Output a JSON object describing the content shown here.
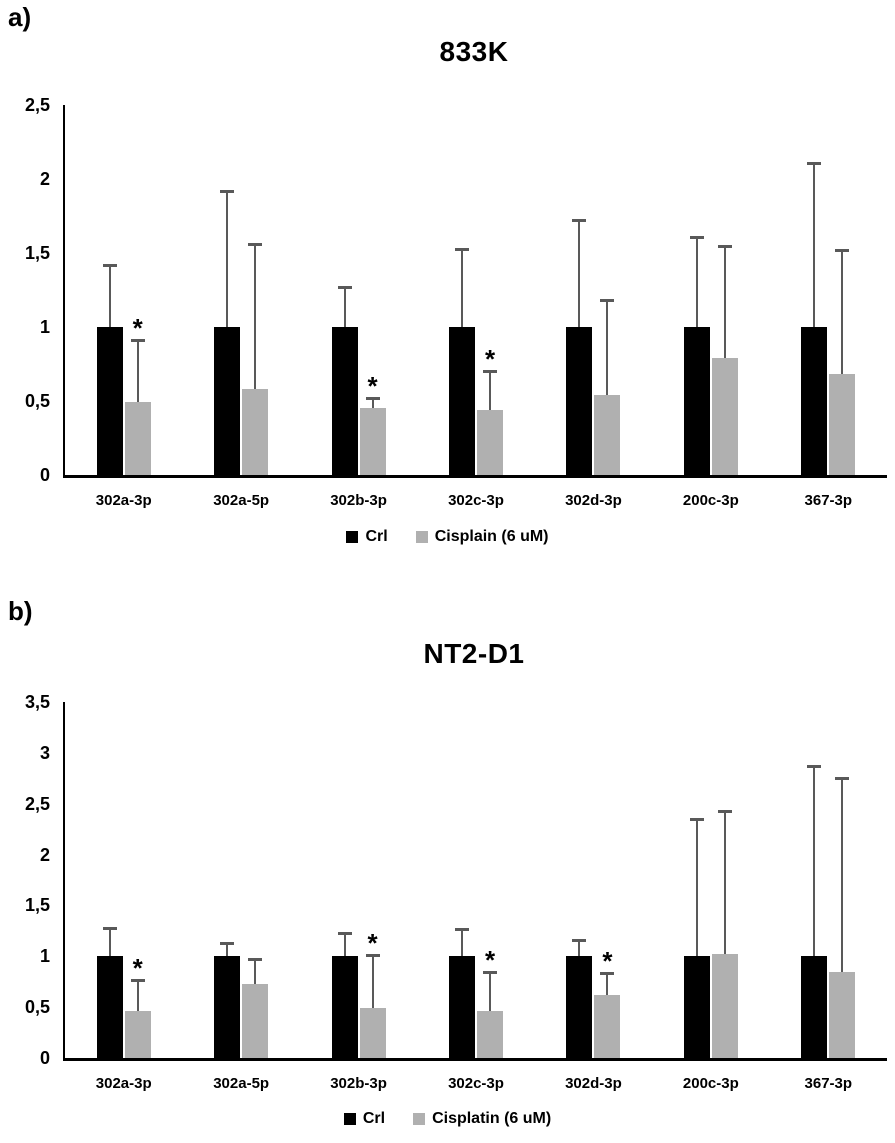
{
  "figure": {
    "background": "#ffffff",
    "significance_marker": "*",
    "error_bar_color": "#595959",
    "axis_color": "#000000"
  },
  "chart_data": [
    {
      "panel_label": "a)",
      "title": "833K",
      "type": "bar",
      "grid": false,
      "legend_position": "bottom",
      "categories": [
        "302a-3p",
        "302a-5p",
        "302b-3p",
        "302c-3p",
        "302d-3p",
        "200c-3p",
        "367-3p"
      ],
      "series": [
        {
          "name": "Crl",
          "color": "#000000",
          "values": [
            1.0,
            1.0,
            1.0,
            1.0,
            1.0,
            1.0,
            1.0
          ],
          "upper_errors": [
            0.42,
            0.92,
            0.27,
            0.53,
            0.72,
            0.61,
            1.11
          ],
          "significant": [
            false,
            false,
            false,
            false,
            false,
            false,
            false
          ]
        },
        {
          "name": "Cisplain (6 uM)",
          "color": "#b0b0b0",
          "values": [
            0.49,
            0.58,
            0.45,
            0.44,
            0.54,
            0.79,
            0.68
          ],
          "upper_errors": [
            0.42,
            0.98,
            0.07,
            0.26,
            0.64,
            0.76,
            0.84
          ],
          "significant": [
            true,
            false,
            true,
            true,
            false,
            false,
            false
          ]
        }
      ],
      "ylim": [
        0,
        2.5
      ],
      "yticks": [
        {
          "v": 0,
          "label": "0"
        },
        {
          "v": 0.5,
          "label": "0,5"
        },
        {
          "v": 1,
          "label": "1"
        },
        {
          "v": 1.5,
          "label": "1,5"
        },
        {
          "v": 2,
          "label": "2"
        },
        {
          "v": 2.5,
          "label": "2,5"
        }
      ]
    },
    {
      "panel_label": "b)",
      "title": "NT2-D1",
      "type": "bar",
      "grid": false,
      "legend_position": "bottom",
      "categories": [
        "302a-3p",
        "302a-5p",
        "302b-3p",
        "302c-3p",
        "302d-3p",
        "200c-3p",
        "367-3p"
      ],
      "series": [
        {
          "name": "Crl",
          "color": "#000000",
          "values": [
            1.0,
            1.0,
            1.0,
            1.0,
            1.0,
            1.0,
            1.0
          ],
          "upper_errors": [
            0.28,
            0.13,
            0.23,
            0.27,
            0.16,
            1.35,
            1.87
          ],
          "significant": [
            false,
            false,
            false,
            false,
            false,
            false,
            false
          ]
        },
        {
          "name": "Cisplatin (6 uM)",
          "color": "#b0b0b0",
          "values": [
            0.46,
            0.73,
            0.49,
            0.46,
            0.62,
            1.02,
            0.85
          ],
          "upper_errors": [
            0.31,
            0.24,
            0.52,
            0.39,
            0.22,
            1.41,
            1.9
          ],
          "significant": [
            true,
            false,
            true,
            true,
            true,
            false,
            false
          ]
        }
      ],
      "ylim": [
        0,
        3.5
      ],
      "yticks": [
        {
          "v": 0,
          "label": "0"
        },
        {
          "v": 0.5,
          "label": "0,5"
        },
        {
          "v": 1,
          "label": "1"
        },
        {
          "v": 1.5,
          "label": "1,5"
        },
        {
          "v": 2,
          "label": "2"
        },
        {
          "v": 2.5,
          "label": "2,5"
        },
        {
          "v": 3,
          "label": "3"
        },
        {
          "v": 3.5,
          "label": "3,5"
        }
      ]
    }
  ]
}
